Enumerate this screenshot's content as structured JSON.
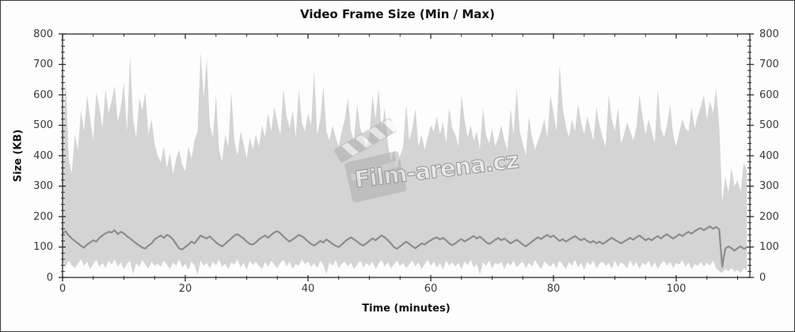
{
  "window": {
    "title": "Video Frame Size (Min / Max)"
  },
  "watermark": {
    "text": "Film-arena.cz",
    "icon": "clapperboard-icon",
    "color": "#9a9a9a"
  },
  "colors": {
    "background": "#fdfdfd",
    "axis": "#2b2b2b",
    "tick_text": "#3a3a3a",
    "band": "#d4d4d4",
    "avg_line": "#8c8c8c",
    "title_text": "#121212"
  },
  "chart_data": {
    "type": "area",
    "title": "Video Frame Size (Min / Max)",
    "xlabel": "Time (minutes)",
    "ylabel": "Size (KB)",
    "xlim": [
      0,
      112
    ],
    "ylim": [
      0,
      800
    ],
    "x_major_ticks": [
      0,
      20,
      40,
      60,
      80,
      100
    ],
    "x_minor_step": 5,
    "y_major_ticks": [
      0,
      100,
      200,
      300,
      400,
      500,
      600,
      700,
      800
    ],
    "y_minor_step": 20,
    "grid": false,
    "legend_position": "none",
    "x_start": 0,
    "x_step": 0.5,
    "series": [
      {
        "name": "max",
        "role": "band-top",
        "color": "#d4d4d4",
        "values": [
          430,
          660,
          390,
          340,
          470,
          420,
          550,
          480,
          600,
          520,
          450,
          610,
          560,
          490,
          620,
          540,
          580,
          630,
          510,
          560,
          640,
          480,
          730,
          520,
          460,
          590,
          550,
          610,
          470,
          520,
          440,
          400,
          380,
          430,
          360,
          410,
          340,
          390,
          420,
          370,
          350,
          430,
          390,
          450,
          480,
          740,
          590,
          720,
          500,
          460,
          600,
          420,
          380,
          470,
          430,
          610,
          450,
          400,
          480,
          440,
          390,
          460,
          420,
          470,
          430,
          500,
          460,
          540,
          480,
          560,
          510,
          470,
          620,
          530,
          490,
          550,
          460,
          620,
          510,
          480,
          540,
          500,
          680,
          470,
          520,
          630,
          480,
          450,
          500,
          460,
          430,
          480,
          520,
          590,
          480,
          450,
          570,
          490,
          460,
          430,
          470,
          600,
          520,
          620,
          480,
          560,
          440,
          380,
          420,
          360,
          400,
          430,
          570,
          450,
          490,
          555,
          430,
          470,
          420,
          460,
          500,
          480,
          530,
          470,
          510,
          440,
          560,
          490,
          470,
          430,
          600,
          520,
          460,
          500,
          450,
          480,
          420,
          560,
          470,
          440,
          490,
          430,
          460,
          500,
          450,
          420,
          555,
          470,
          620,
          480,
          440,
          400,
          530,
          460,
          420,
          450,
          480,
          520,
          460,
          600,
          540,
          480,
          700,
          560,
          500,
          460,
          520,
          480,
          570,
          510,
          470,
          530,
          490,
          450,
          560,
          500,
          460,
          430,
          600,
          520,
          480,
          560,
          440,
          470,
          510,
          480,
          450,
          490,
          600,
          530,
          470,
          520,
          480,
          440,
          620,
          490,
          460,
          500,
          570,
          470,
          430,
          480,
          520,
          490,
          480,
          560,
          490,
          530,
          560,
          600,
          520,
          580,
          540,
          620,
          500,
          250,
          330,
          280,
          360,
          300,
          320,
          280,
          380,
          350
        ]
      },
      {
        "name": "min",
        "role": "band-bottom",
        "color": "#d4d4d4",
        "values": [
          50,
          35,
          55,
          40,
          30,
          45,
          60,
          38,
          52,
          28,
          44,
          58,
          35,
          48,
          30,
          55,
          42,
          60,
          36,
          50,
          28,
          45,
          55,
          10,
          48,
          35,
          58,
          42,
          30,
          52,
          38,
          45,
          35,
          55,
          42,
          28,
          50,
          38,
          60,
          33,
          45,
          25,
          52,
          40,
          8,
          55,
          38,
          48,
          30,
          52,
          40,
          58,
          35,
          45,
          28,
          50,
          42,
          60,
          33,
          48,
          25,
          55,
          40,
          52,
          38,
          28,
          50,
          35,
          55,
          42,
          30,
          48,
          58,
          36,
          52,
          28,
          45,
          38,
          60,
          44,
          52,
          35,
          48,
          30,
          55,
          40,
          10,
          50,
          38,
          58,
          30,
          45,
          52,
          36,
          48,
          28,
          42,
          55,
          33,
          48,
          38,
          52,
          28,
          45,
          58,
          35,
          50,
          30,
          42,
          55,
          38,
          48,
          30,
          45,
          55,
          36,
          50,
          28,
          44,
          58,
          38,
          52,
          32,
          48,
          25,
          55,
          40,
          50,
          35,
          48,
          28,
          52,
          40,
          58,
          33,
          45,
          8,
          50,
          38,
          55,
          30,
          48,
          42,
          52,
          28,
          50,
          38,
          55,
          33,
          45,
          52,
          30,
          48,
          36,
          58,
          40,
          28,
          52,
          44,
          35,
          48,
          30,
          55,
          42,
          28,
          50,
          38,
          58,
          33,
          48,
          25,
          52,
          40,
          55,
          30,
          45,
          52,
          38,
          48,
          28,
          55,
          35,
          50,
          42,
          30,
          58,
          36,
          52,
          28,
          48,
          40,
          55,
          33,
          50,
          28,
          45,
          55,
          38,
          52,
          30,
          48,
          42,
          58,
          35,
          50,
          28,
          44,
          38,
          52,
          35,
          48,
          40,
          55,
          30,
          20,
          15,
          28,
          20,
          32,
          18,
          25,
          15,
          30,
          22
        ]
      },
      {
        "name": "avg",
        "role": "line",
        "color": "#8c8c8c",
        "values": [
          145,
          152,
          138,
          128,
          120,
          112,
          104,
          98,
          108,
          115,
          122,
          118,
          130,
          138,
          145,
          150,
          148,
          155,
          142,
          150,
          145,
          135,
          128,
          120,
          112,
          105,
          98,
          95,
          105,
          112,
          125,
          132,
          138,
          130,
          140,
          135,
          125,
          110,
          95,
          92,
          100,
          108,
          118,
          112,
          125,
          138,
          132,
          128,
          135,
          125,
          115,
          108,
          102,
          110,
          120,
          128,
          138,
          142,
          135,
          128,
          118,
          110,
          108,
          115,
          125,
          132,
          138,
          130,
          140,
          148,
          152,
          145,
          135,
          125,
          118,
          125,
          132,
          140,
          135,
          128,
          118,
          110,
          105,
          112,
          120,
          115,
          125,
          118,
          110,
          104,
          100,
          108,
          118,
          126,
          132,
          125,
          118,
          110,
          105,
          112,
          120,
          128,
          122,
          130,
          138,
          132,
          122,
          112,
          100,
          94,
          102,
          110,
          118,
          110,
          102,
          96,
          104,
          112,
          108,
          116,
          122,
          128,
          132,
          125,
          130,
          122,
          112,
          106,
          112,
          120,
          126,
          118,
          124,
          130,
          136,
          128,
          134,
          126,
          116,
          110,
          116,
          124,
          130,
          122,
          128,
          120,
          112,
          118,
          124,
          116,
          108,
          102,
          110,
          118,
          126,
          132,
          126,
          134,
          140,
          132,
          138,
          128,
          120,
          126,
          118,
          124,
          130,
          136,
          128,
          122,
          128,
          120,
          114,
          120,
          112,
          118,
          110,
          116,
          124,
          130,
          124,
          118,
          112,
          118,
          124,
          130,
          124,
          132,
          138,
          130,
          122,
          128,
          122,
          130,
          136,
          128,
          136,
          142,
          134,
          128,
          134,
          142,
          136,
          144,
          150,
          144,
          152,
          158,
          162,
          155,
          162,
          168,
          160,
          166,
          158,
          35,
          95,
          102,
          96,
          88,
          96,
          102,
          94,
          98
        ]
      }
    ]
  }
}
